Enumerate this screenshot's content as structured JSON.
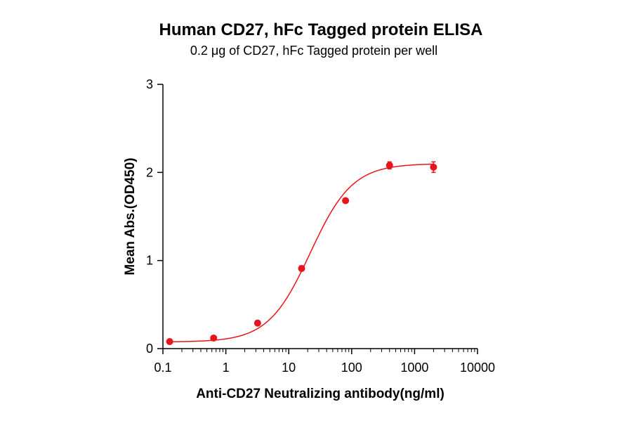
{
  "chart_data": {
    "type": "scatter",
    "title": "Human CD27, hFc Tagged protein ELISA",
    "subtitle": "0.2 μg of CD27, hFc Tagged protein per well",
    "xlabel": "Anti-CD27 Neutralizing antibody(ng/ml)",
    "ylabel": "Mean Abs.(OD450)",
    "x_scale": "log",
    "xlim": [
      0.1,
      10000
    ],
    "ylim": [
      0,
      3
    ],
    "x_ticks": [
      {
        "value": 0.1,
        "label": "0.1"
      },
      {
        "value": 1,
        "label": "1"
      },
      {
        "value": 10,
        "label": "10"
      },
      {
        "value": 100,
        "label": "100"
      },
      {
        "value": 1000,
        "label": "1000"
      },
      {
        "value": 10000,
        "label": "10000"
      }
    ],
    "y_ticks": [
      {
        "value": 0,
        "label": "0"
      },
      {
        "value": 1,
        "label": "1"
      },
      {
        "value": 2,
        "label": "2"
      },
      {
        "value": 3,
        "label": "3"
      }
    ],
    "color": "#e8141c",
    "grid": false,
    "series": [
      {
        "x": [
          0.128,
          0.64,
          3.2,
          16,
          80,
          400,
          2000
        ],
        "y": [
          0.08,
          0.12,
          0.29,
          0.91,
          1.68,
          2.08,
          2.06
        ],
        "err": [
          0.01,
          0.01,
          0.02,
          0.03,
          0.02,
          0.04,
          0.06
        ]
      }
    ],
    "fit": {
      "model": "4PL",
      "bottom": 0.075,
      "top": 2.1,
      "ec50": 22,
      "hill": 1.3
    }
  }
}
